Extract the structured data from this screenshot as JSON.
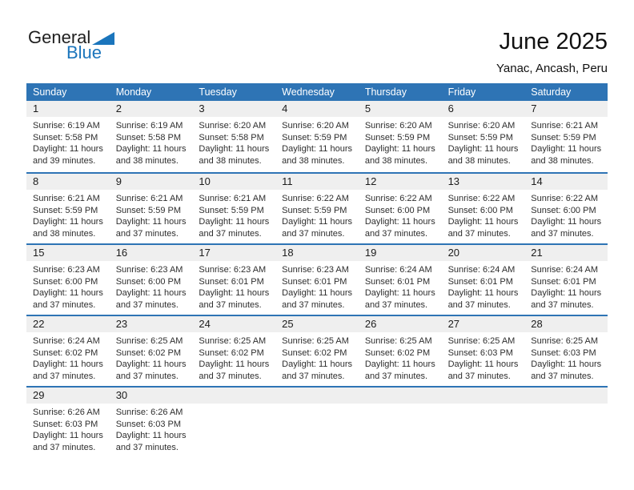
{
  "logo": {
    "general": "General",
    "blue": "Blue"
  },
  "header": {
    "title": "June 2025",
    "subtitle": "Yanac, Ancash, Peru"
  },
  "colors": {
    "header_bar_blue": "#2e74b5",
    "week_divider_blue": "#2e74b5",
    "day_band_gray": "#efefef",
    "logo_blue": "#1b75bc",
    "text_dark": "#1c1c1c"
  },
  "calendar": {
    "weekdays": [
      "Sunday",
      "Monday",
      "Tuesday",
      "Wednesday",
      "Thursday",
      "Friday",
      "Saturday"
    ],
    "weeks": [
      [
        {
          "day": "1",
          "sunrise": "Sunrise: 6:19 AM",
          "sunset": "Sunset: 5:58 PM",
          "daylight1": "Daylight: 11 hours",
          "daylight2": "and 39 minutes."
        },
        {
          "day": "2",
          "sunrise": "Sunrise: 6:19 AM",
          "sunset": "Sunset: 5:58 PM",
          "daylight1": "Daylight: 11 hours",
          "daylight2": "and 38 minutes."
        },
        {
          "day": "3",
          "sunrise": "Sunrise: 6:20 AM",
          "sunset": "Sunset: 5:58 PM",
          "daylight1": "Daylight: 11 hours",
          "daylight2": "and 38 minutes."
        },
        {
          "day": "4",
          "sunrise": "Sunrise: 6:20 AM",
          "sunset": "Sunset: 5:59 PM",
          "daylight1": "Daylight: 11 hours",
          "daylight2": "and 38 minutes."
        },
        {
          "day": "5",
          "sunrise": "Sunrise: 6:20 AM",
          "sunset": "Sunset: 5:59 PM",
          "daylight1": "Daylight: 11 hours",
          "daylight2": "and 38 minutes."
        },
        {
          "day": "6",
          "sunrise": "Sunrise: 6:20 AM",
          "sunset": "Sunset: 5:59 PM",
          "daylight1": "Daylight: 11 hours",
          "daylight2": "and 38 minutes."
        },
        {
          "day": "7",
          "sunrise": "Sunrise: 6:21 AM",
          "sunset": "Sunset: 5:59 PM",
          "daylight1": "Daylight: 11 hours",
          "daylight2": "and 38 minutes."
        }
      ],
      [
        {
          "day": "8",
          "sunrise": "Sunrise: 6:21 AM",
          "sunset": "Sunset: 5:59 PM",
          "daylight1": "Daylight: 11 hours",
          "daylight2": "and 38 minutes."
        },
        {
          "day": "9",
          "sunrise": "Sunrise: 6:21 AM",
          "sunset": "Sunset: 5:59 PM",
          "daylight1": "Daylight: 11 hours",
          "daylight2": "and 37 minutes."
        },
        {
          "day": "10",
          "sunrise": "Sunrise: 6:21 AM",
          "sunset": "Sunset: 5:59 PM",
          "daylight1": "Daylight: 11 hours",
          "daylight2": "and 37 minutes."
        },
        {
          "day": "11",
          "sunrise": "Sunrise: 6:22 AM",
          "sunset": "Sunset: 5:59 PM",
          "daylight1": "Daylight: 11 hours",
          "daylight2": "and 37 minutes."
        },
        {
          "day": "12",
          "sunrise": "Sunrise: 6:22 AM",
          "sunset": "Sunset: 6:00 PM",
          "daylight1": "Daylight: 11 hours",
          "daylight2": "and 37 minutes."
        },
        {
          "day": "13",
          "sunrise": "Sunrise: 6:22 AM",
          "sunset": "Sunset: 6:00 PM",
          "daylight1": "Daylight: 11 hours",
          "daylight2": "and 37 minutes."
        },
        {
          "day": "14",
          "sunrise": "Sunrise: 6:22 AM",
          "sunset": "Sunset: 6:00 PM",
          "daylight1": "Daylight: 11 hours",
          "daylight2": "and 37 minutes."
        }
      ],
      [
        {
          "day": "15",
          "sunrise": "Sunrise: 6:23 AM",
          "sunset": "Sunset: 6:00 PM",
          "daylight1": "Daylight: 11 hours",
          "daylight2": "and 37 minutes."
        },
        {
          "day": "16",
          "sunrise": "Sunrise: 6:23 AM",
          "sunset": "Sunset: 6:00 PM",
          "daylight1": "Daylight: 11 hours",
          "daylight2": "and 37 minutes."
        },
        {
          "day": "17",
          "sunrise": "Sunrise: 6:23 AM",
          "sunset": "Sunset: 6:01 PM",
          "daylight1": "Daylight: 11 hours",
          "daylight2": "and 37 minutes."
        },
        {
          "day": "18",
          "sunrise": "Sunrise: 6:23 AM",
          "sunset": "Sunset: 6:01 PM",
          "daylight1": "Daylight: 11 hours",
          "daylight2": "and 37 minutes."
        },
        {
          "day": "19",
          "sunrise": "Sunrise: 6:24 AM",
          "sunset": "Sunset: 6:01 PM",
          "daylight1": "Daylight: 11 hours",
          "daylight2": "and 37 minutes."
        },
        {
          "day": "20",
          "sunrise": "Sunrise: 6:24 AM",
          "sunset": "Sunset: 6:01 PM",
          "daylight1": "Daylight: 11 hours",
          "daylight2": "and 37 minutes."
        },
        {
          "day": "21",
          "sunrise": "Sunrise: 6:24 AM",
          "sunset": "Sunset: 6:01 PM",
          "daylight1": "Daylight: 11 hours",
          "daylight2": "and 37 minutes."
        }
      ],
      [
        {
          "day": "22",
          "sunrise": "Sunrise: 6:24 AM",
          "sunset": "Sunset: 6:02 PM",
          "daylight1": "Daylight: 11 hours",
          "daylight2": "and 37 minutes."
        },
        {
          "day": "23",
          "sunrise": "Sunrise: 6:25 AM",
          "sunset": "Sunset: 6:02 PM",
          "daylight1": "Daylight: 11 hours",
          "daylight2": "and 37 minutes."
        },
        {
          "day": "24",
          "sunrise": "Sunrise: 6:25 AM",
          "sunset": "Sunset: 6:02 PM",
          "daylight1": "Daylight: 11 hours",
          "daylight2": "and 37 minutes."
        },
        {
          "day": "25",
          "sunrise": "Sunrise: 6:25 AM",
          "sunset": "Sunset: 6:02 PM",
          "daylight1": "Daylight: 11 hours",
          "daylight2": "and 37 minutes."
        },
        {
          "day": "26",
          "sunrise": "Sunrise: 6:25 AM",
          "sunset": "Sunset: 6:02 PM",
          "daylight1": "Daylight: 11 hours",
          "daylight2": "and 37 minutes."
        },
        {
          "day": "27",
          "sunrise": "Sunrise: 6:25 AM",
          "sunset": "Sunset: 6:03 PM",
          "daylight1": "Daylight: 11 hours",
          "daylight2": "and 37 minutes."
        },
        {
          "day": "28",
          "sunrise": "Sunrise: 6:25 AM",
          "sunset": "Sunset: 6:03 PM",
          "daylight1": "Daylight: 11 hours",
          "daylight2": "and 37 minutes."
        }
      ],
      [
        {
          "day": "29",
          "sunrise": "Sunrise: 6:26 AM",
          "sunset": "Sunset: 6:03 PM",
          "daylight1": "Daylight: 11 hours",
          "daylight2": "and 37 minutes."
        },
        {
          "day": "30",
          "sunrise": "Sunrise: 6:26 AM",
          "sunset": "Sunset: 6:03 PM",
          "daylight1": "Daylight: 11 hours",
          "daylight2": "and 37 minutes."
        },
        null,
        null,
        null,
        null,
        null
      ]
    ]
  }
}
